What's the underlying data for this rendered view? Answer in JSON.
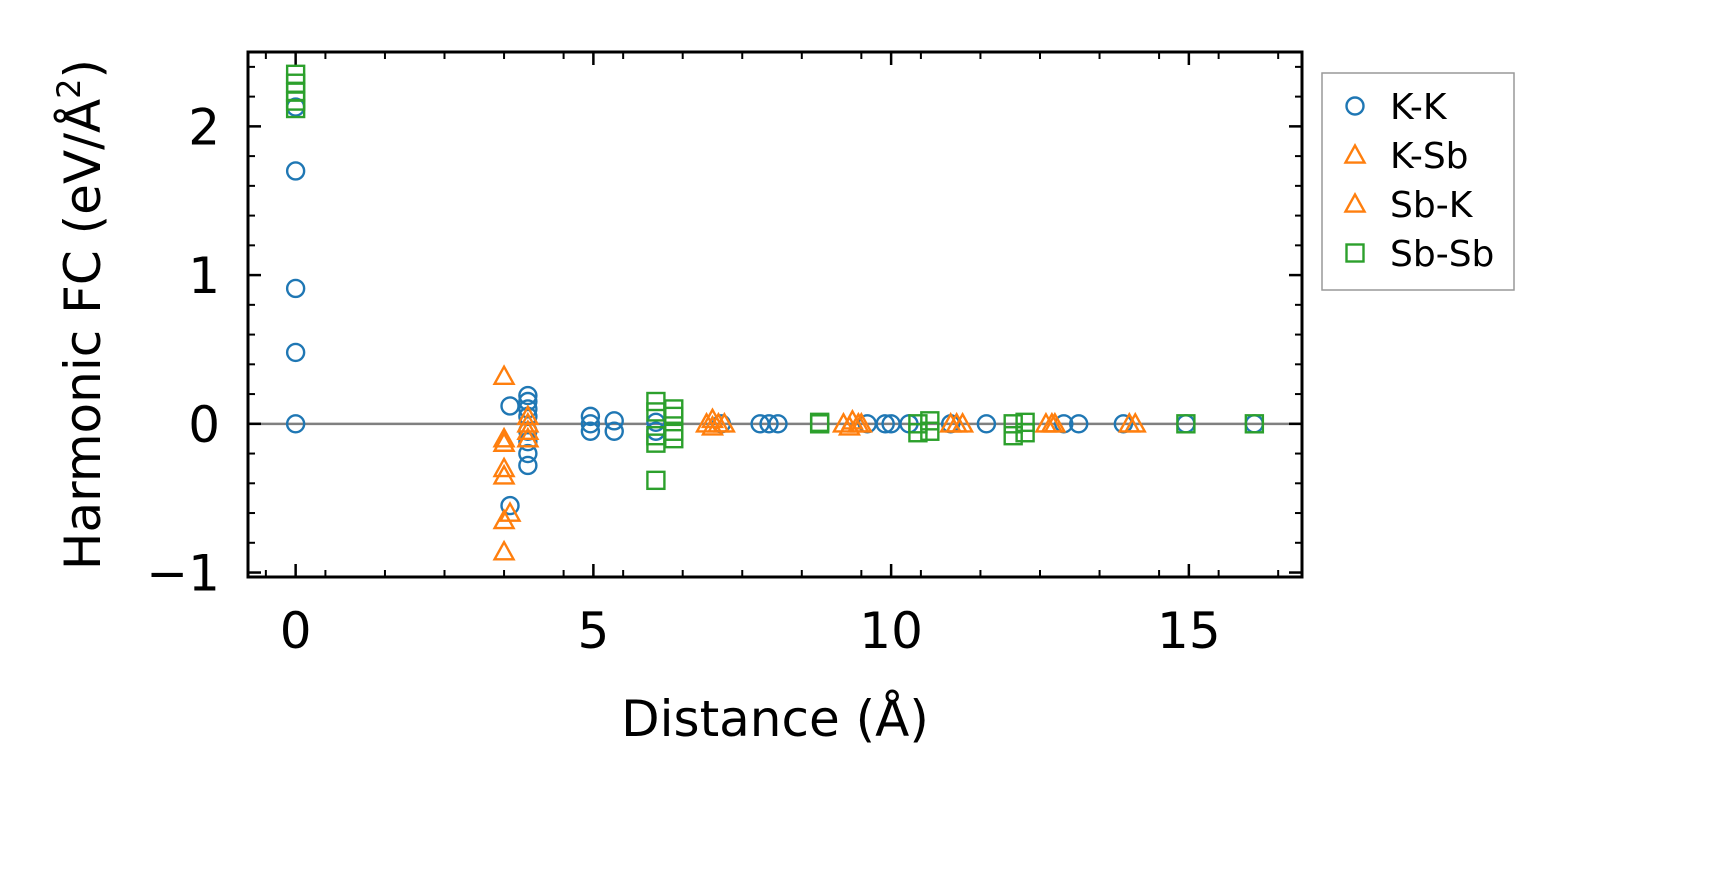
{
  "chart_data": {
    "type": "scatter",
    "title": "",
    "xlabel": "Distance (Å)",
    "ylabel_main": "Harmonic FC (eV/Å",
    "ylabel_sup": "2",
    "ylabel_close": ")",
    "xlim": [
      -0.8,
      16.9
    ],
    "ylim": [
      -1.03,
      2.5
    ],
    "xticks": [
      0,
      5,
      10,
      15
    ],
    "xtick_labels": [
      "0",
      "5",
      "10",
      "15"
    ],
    "yticks": [
      -1,
      0,
      1,
      2
    ],
    "ytick_labels": [
      "−1",
      "0",
      "1",
      "2"
    ],
    "zero_line": true,
    "legend_position": "right-outside-top",
    "series": [
      {
        "name": "K-K",
        "marker": "circle",
        "color": "#1f77b4",
        "points": [
          [
            0,
            2.13
          ],
          [
            0,
            1.7
          ],
          [
            0,
            0.91
          ],
          [
            0,
            0.48
          ],
          [
            0,
            0.0
          ],
          [
            3.6,
            0.12
          ],
          [
            3.6,
            -0.55
          ],
          [
            3.9,
            0.19
          ],
          [
            3.9,
            0.15
          ],
          [
            3.9,
            0.1
          ],
          [
            3.9,
            0.05
          ],
          [
            3.9,
            -0.05
          ],
          [
            3.9,
            -0.12
          ],
          [
            3.9,
            -0.2
          ],
          [
            3.9,
            -0.28
          ],
          [
            4.95,
            0.05
          ],
          [
            4.95,
            0.0
          ],
          [
            4.95,
            -0.05
          ],
          [
            5.35,
            0.02
          ],
          [
            5.35,
            -0.05
          ],
          [
            6.05,
            0.01
          ],
          [
            6.05,
            -0.05
          ],
          [
            7.15,
            0.0
          ],
          [
            7.8,
            0.0
          ],
          [
            7.95,
            0.0
          ],
          [
            8.1,
            0.0
          ],
          [
            9.6,
            0.0
          ],
          [
            9.9,
            0.0
          ],
          [
            10.0,
            0.0
          ],
          [
            10.3,
            0.0
          ],
          [
            11.0,
            0.0
          ],
          [
            11.6,
            0.0
          ],
          [
            12.9,
            0.0
          ],
          [
            13.15,
            0.0
          ],
          [
            13.9,
            0.0
          ],
          [
            14.95,
            0.0
          ],
          [
            16.1,
            0.0
          ]
        ]
      },
      {
        "name": "K-Sb",
        "marker": "triangle",
        "color": "#ff7f0e",
        "points": [
          [
            3.5,
            0.32
          ],
          [
            3.5,
            -0.1
          ],
          [
            3.5,
            -0.3
          ],
          [
            3.5,
            -0.65
          ],
          [
            3.5,
            -0.86
          ],
          [
            3.9,
            0.05
          ],
          [
            3.9,
            -0.05
          ],
          [
            6.9,
            0.0
          ],
          [
            7.0,
            0.03
          ],
          [
            7.1,
            0.0
          ],
          [
            9.2,
            0.0
          ],
          [
            9.35,
            0.02
          ],
          [
            9.5,
            0.0
          ],
          [
            11.0,
            0.0
          ],
          [
            11.2,
            0.0
          ],
          [
            12.6,
            0.0
          ],
          [
            12.75,
            0.0
          ],
          [
            14.0,
            0.0
          ]
        ]
      },
      {
        "name": "Sb-K",
        "marker": "triangle",
        "color": "#ff7f0e",
        "points": [
          [
            3.5,
            -0.13
          ],
          [
            3.5,
            -0.35
          ],
          [
            3.6,
            -0.6
          ],
          [
            3.9,
            0.0
          ],
          [
            3.9,
            -0.1
          ],
          [
            7.0,
            -0.02
          ],
          [
            7.2,
            0.0
          ],
          [
            9.3,
            -0.02
          ],
          [
            9.45,
            0.0
          ],
          [
            11.1,
            0.0
          ],
          [
            12.7,
            0.0
          ],
          [
            14.1,
            0.0
          ]
        ]
      },
      {
        "name": "Sb-Sb",
        "marker": "square",
        "color": "#2ca02c",
        "points": [
          [
            0,
            2.35
          ],
          [
            0,
            2.29
          ],
          [
            0,
            2.23
          ],
          [
            0,
            2.17
          ],
          [
            0,
            2.12
          ],
          [
            6.05,
            0.15
          ],
          [
            6.05,
            0.08
          ],
          [
            6.05,
            -0.08
          ],
          [
            6.05,
            -0.13
          ],
          [
            6.05,
            -0.38
          ],
          [
            6.35,
            0.1
          ],
          [
            6.35,
            0.05
          ],
          [
            6.35,
            -0.05
          ],
          [
            6.35,
            -0.1
          ],
          [
            8.8,
            0.0
          ],
          [
            8.8,
            0.01
          ],
          [
            10.45,
            0.0
          ],
          [
            10.45,
            -0.06
          ],
          [
            10.65,
            0.02
          ],
          [
            10.65,
            -0.05
          ],
          [
            12.05,
            0.0
          ],
          [
            12.05,
            -0.08
          ],
          [
            12.25,
            0.01
          ],
          [
            12.25,
            -0.06
          ],
          [
            14.95,
            0.0
          ],
          [
            16.1,
            0.0
          ]
        ]
      }
    ]
  }
}
